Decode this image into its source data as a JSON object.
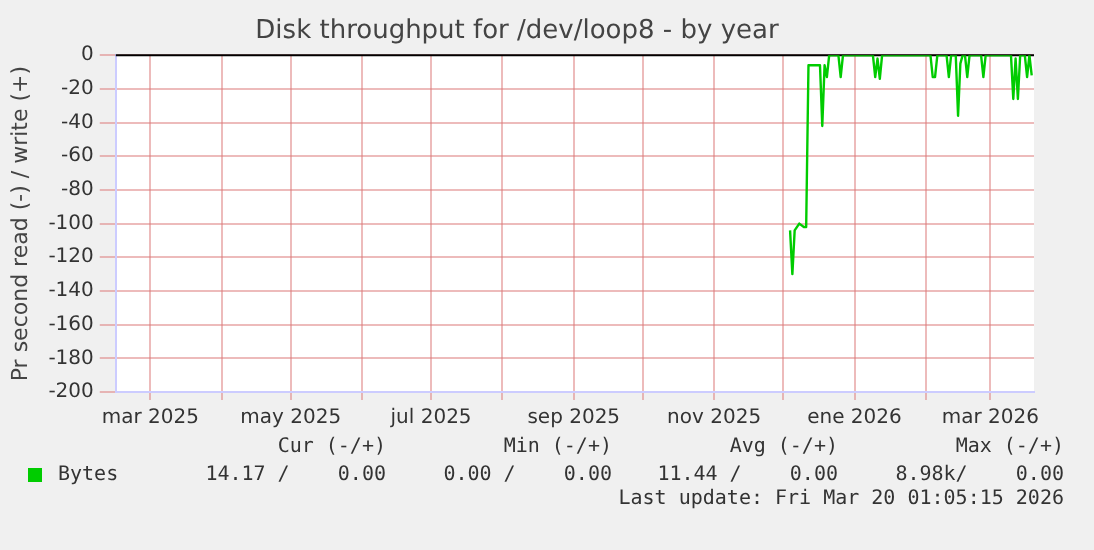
{
  "chart_data": {
    "type": "line",
    "title": "Disk throughput for /dev/loop8 - by year",
    "ylabel": "Pr second read (-) / write (+)",
    "xlim": [
      "2025-02-14",
      "2026-03-20"
    ],
    "xticks": [
      {
        "value": "2025-03-01",
        "label": "mar 2025"
      },
      {
        "value": "2025-04-01",
        "label": null
      },
      {
        "value": "2025-05-01",
        "label": "may 2025"
      },
      {
        "value": "2025-06-01",
        "label": null
      },
      {
        "value": "2025-07-01",
        "label": "jul 2025"
      },
      {
        "value": "2025-08-01",
        "label": null
      },
      {
        "value": "2025-09-01",
        "label": "sep 2025"
      },
      {
        "value": "2025-10-01",
        "label": null
      },
      {
        "value": "2025-11-01",
        "label": "nov 2025"
      },
      {
        "value": "2025-12-01",
        "label": null
      },
      {
        "value": "2026-01-01",
        "label": "ene 2026"
      },
      {
        "value": "2026-02-01",
        "label": null
      },
      {
        "value": "2026-03-01",
        "label": "mar 2026"
      }
    ],
    "ylim": [
      -200,
      0
    ],
    "yticks": [
      0,
      -20,
      -40,
      -60,
      -80,
      -100,
      -120,
      -140,
      -160,
      -180,
      -200
    ],
    "grid": true,
    "legend": "bottom",
    "marker": "none",
    "line_style": "solid",
    "ref_lines": [
      {
        "axis": "y",
        "value": 0,
        "color": "#000000"
      }
    ],
    "x": [
      "2025-12-04",
      "2025-12-05",
      "2025-12-06",
      "2025-12-08",
      "2025-12-10",
      "2025-12-11",
      "2025-12-12",
      "2025-12-15",
      "2025-12-17",
      "2025-12-18",
      "2025-12-19",
      "2025-12-20",
      "2025-12-21",
      "2025-12-25",
      "2025-12-26",
      "2025-12-27",
      "2026-01-09",
      "2026-01-10",
      "2026-01-11",
      "2026-01-12",
      "2026-01-13",
      "2026-02-03",
      "2026-02-04",
      "2026-02-05",
      "2026-02-06",
      "2026-02-10",
      "2026-02-11",
      "2026-02-12",
      "2026-02-14",
      "2026-02-15",
      "2026-02-16",
      "2026-02-17",
      "2026-02-18",
      "2026-02-19",
      "2026-02-20",
      "2026-02-25",
      "2026-02-26",
      "2026-02-27",
      "2026-03-10",
      "2026-03-11",
      "2026-03-12",
      "2026-03-13",
      "2026-03-14",
      "2026-03-16",
      "2026-03-17",
      "2026-03-18",
      "2026-03-19"
    ],
    "series": [
      {
        "name": "Bytes",
        "color": "#00cc00",
        "values": [
          -104,
          -130,
          -104,
          -100,
          -102,
          -102,
          -6,
          -6,
          -6,
          -42,
          -6,
          -13,
          0,
          0,
          -13,
          0,
          0,
          -13,
          -2,
          -14,
          0,
          0,
          -13,
          -13,
          0,
          0,
          -13,
          0,
          0,
          -36,
          -5,
          0,
          0,
          -13,
          0,
          0,
          -13,
          0,
          0,
          -26,
          -2,
          -26,
          0,
          0,
          -13,
          0,
          -12
        ]
      }
    ],
    "annotations": [
      "Cur (-/+)",
      "Min (-/+)",
      "Avg (-/+)",
      "Max (-/+)",
      "14.17 /    0.00",
      "0.00 /    0.00",
      "11.44 /    0.00",
      "8.98k/    0.00",
      "Last update: Fri Mar 20 01:05:15 2026"
    ]
  }
}
